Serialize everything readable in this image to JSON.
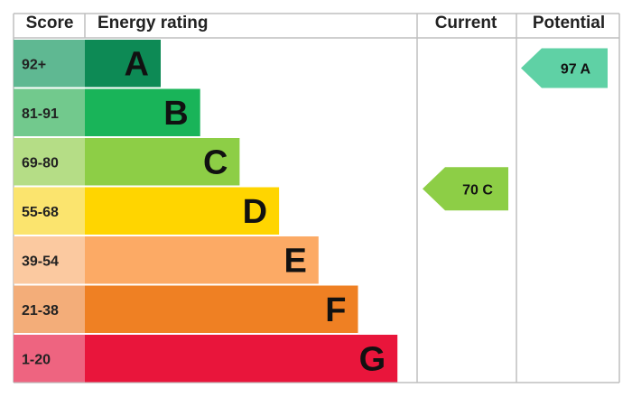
{
  "header": {
    "score": "Score",
    "energy_rating": "Energy rating",
    "current": "Current",
    "potential": "Potential"
  },
  "chart_data": {
    "type": "bar",
    "bands": [
      {
        "letter": "A",
        "range": "92+",
        "color": "#0d8a55",
        "score_color": "#5fb892"
      },
      {
        "letter": "B",
        "range": "81-91",
        "color": "#19b459",
        "score_color": "#72c98d"
      },
      {
        "letter": "C",
        "range": "69-80",
        "color": "#8dce46",
        "score_color": "#b5dd86"
      },
      {
        "letter": "D",
        "range": "55-68",
        "color": "#ffd500",
        "score_color": "#fbe46e"
      },
      {
        "letter": "E",
        "range": "39-54",
        "color": "#fcaa65",
        "score_color": "#fbc9a0"
      },
      {
        "letter": "F",
        "range": "21-38",
        "color": "#ef8023",
        "score_color": "#f3ad79"
      },
      {
        "letter": "G",
        "range": "1-20",
        "color": "#e9153b",
        "score_color": "#ee6480"
      }
    ],
    "current": {
      "value": 70,
      "band": "C",
      "label": "70 C",
      "color": "#8dce46"
    },
    "potential": {
      "value": 97,
      "band": "A",
      "label": "97 A",
      "color": "#5fd1a5"
    }
  }
}
